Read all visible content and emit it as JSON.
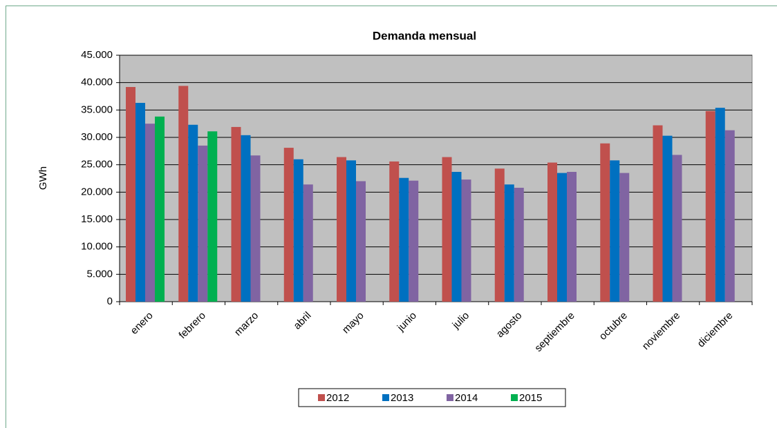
{
  "chart_data": {
    "type": "bar",
    "title": "Demanda mensual",
    "y_label": "GWh",
    "categories": [
      "enero",
      "febrero",
      "marzo",
      "abril",
      "mayo",
      "junio",
      "julio",
      "agosto",
      "septiembre",
      "octubre",
      "noviembre",
      "diciembre"
    ],
    "series": [
      {
        "name": "2012",
        "color": "#c0504d",
        "values": [
          39200,
          39400,
          31900,
          28100,
          26400,
          25600,
          26400,
          24300,
          25400,
          28900,
          32200,
          34800
        ]
      },
      {
        "name": "2013",
        "color": "#0070c0",
        "values": [
          36300,
          32300,
          30400,
          26000,
          25800,
          22600,
          23700,
          21400,
          23500,
          25800,
          30300,
          35400
        ]
      },
      {
        "name": "2014",
        "color": "#8064a2",
        "values": [
          32500,
          28500,
          26700,
          21400,
          22000,
          22100,
          22300,
          20800,
          23700,
          23500,
          26800,
          31300
        ]
      },
      {
        "name": "2015",
        "color": "#00b050",
        "values": [
          33800,
          31100,
          null,
          null,
          null,
          null,
          null,
          null,
          null,
          null,
          null,
          null
        ]
      }
    ],
    "ylim": [
      0,
      45000
    ],
    "yticks": [
      0,
      {
        "value": 5000,
        "label": "5.000"
      },
      {
        "value": 10000,
        "label": "10.000"
      },
      {
        "value": 15000,
        "label": "15.000"
      },
      {
        "value": 20000,
        "label": "20.000"
      },
      {
        "value": 25000,
        "label": "25.000"
      },
      {
        "value": 30000,
        "label": "30.000"
      },
      {
        "value": 35000,
        "label": "35.000"
      },
      {
        "value": 40000,
        "label": "40.000"
      },
      {
        "value": 45000,
        "label": "45.000"
      }
    ],
    "grid": true,
    "legend": "bottom",
    "plot_background": "#c0c0c0"
  }
}
